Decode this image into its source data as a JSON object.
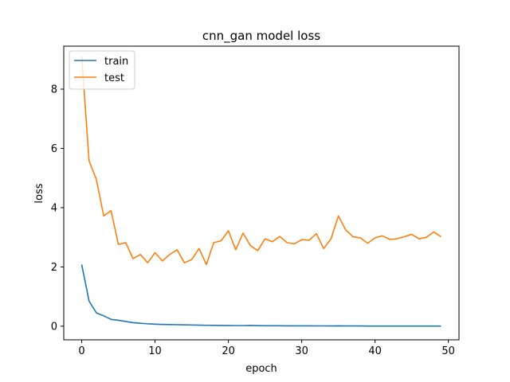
{
  "chart_data": {
    "type": "line",
    "title": "cnn_gan model loss",
    "xlabel": "epoch",
    "ylabel": "loss",
    "xlim": [
      -2.45,
      51.45
    ],
    "ylim": [
      -0.46,
      9.45
    ],
    "xticks": [
      0,
      10,
      20,
      30,
      40,
      50
    ],
    "yticks": [
      0,
      2,
      4,
      6,
      8
    ],
    "grid": false,
    "legend_position": "top-left",
    "colors": {
      "train": "#1f77b4",
      "test": "#ff7f0e"
    },
    "x": [
      0,
      1,
      2,
      3,
      4,
      5,
      6,
      7,
      8,
      9,
      10,
      11,
      12,
      13,
      14,
      15,
      16,
      17,
      18,
      19,
      20,
      21,
      22,
      23,
      24,
      25,
      26,
      27,
      28,
      29,
      30,
      31,
      32,
      33,
      34,
      35,
      36,
      37,
      38,
      39,
      40,
      41,
      42,
      43,
      44,
      45,
      46,
      47,
      48,
      49
    ],
    "series": [
      {
        "name": "train",
        "values": [
          2.08,
          0.85,
          0.45,
          0.35,
          0.23,
          0.2,
          0.16,
          0.12,
          0.1,
          0.08,
          0.07,
          0.06,
          0.055,
          0.05,
          0.045,
          0.04,
          0.035,
          0.03,
          0.028,
          0.025,
          0.022,
          0.02,
          0.02,
          0.025,
          0.018,
          0.016,
          0.015,
          0.014,
          0.013,
          0.012,
          0.011,
          0.012,
          0.01,
          0.01,
          0.009,
          0.012,
          0.008,
          0.007,
          0.007,
          0.006,
          0.006,
          0.005,
          0.005,
          0.005,
          0.005,
          0.004,
          0.004,
          0.004,
          0.004,
          0.004
        ]
      },
      {
        "name": "test",
        "values": [
          9.1,
          5.58,
          4.95,
          3.72,
          3.9,
          2.76,
          2.82,
          2.28,
          2.42,
          2.14,
          2.48,
          2.2,
          2.42,
          2.58,
          2.14,
          2.25,
          2.62,
          2.08,
          2.82,
          2.88,
          3.22,
          2.58,
          3.14,
          2.72,
          2.55,
          2.95,
          2.85,
          3.03,
          2.82,
          2.78,
          2.92,
          2.9,
          3.12,
          2.62,
          2.95,
          3.72,
          3.25,
          3.02,
          2.98,
          2.8,
          2.98,
          3.05,
          2.93,
          2.95,
          3.02,
          3.1,
          2.95,
          3.0,
          3.18,
          3.02
        ]
      }
    ]
  }
}
